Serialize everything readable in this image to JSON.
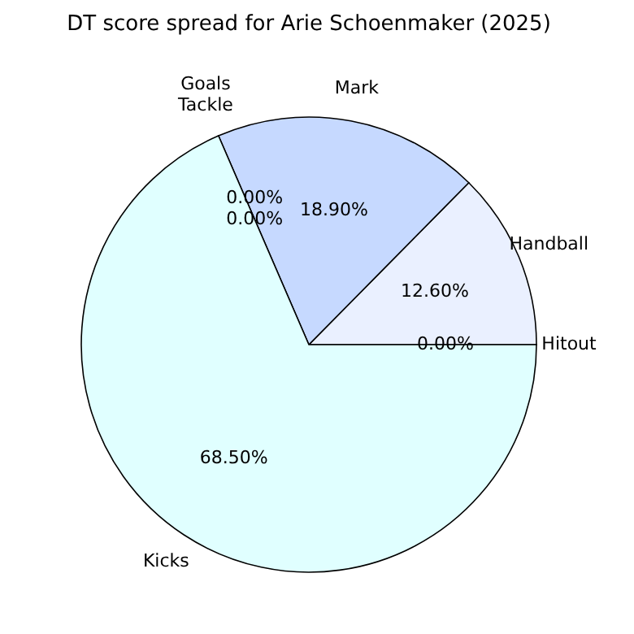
{
  "chart_data": {
    "type": "pie",
    "title": "DT score spread for Arie Schoenmaker (2025)",
    "categories": [
      "Hitout",
      "Handball",
      "Mark",
      "Tackle",
      "Goals",
      "Kicks"
    ],
    "values": [
      0,
      12.6,
      18.9,
      0,
      0,
      68.5
    ],
    "value_labels": [
      "0.00%",
      "12.60%",
      "18.90%",
      "0.00%",
      "0.00%",
      "68.50%"
    ],
    "colors": [
      "#f5f5f5",
      "#eaf0ff",
      "#c6d9ff",
      "#ffffff",
      "#e8e8e8",
      "#e0ffff"
    ]
  }
}
